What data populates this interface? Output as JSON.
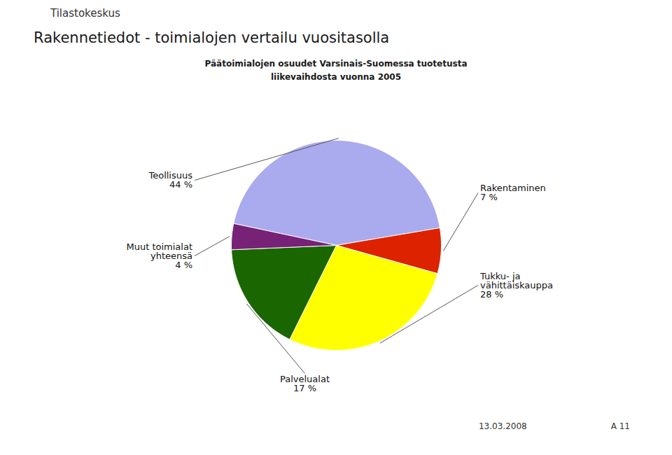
{
  "chart_data": {
    "type": "pie",
    "title": "Rakennetiedot - toimialojen vertailu vuositasolla",
    "subtitle": "Päätoimialojen osuudet Varsinais-Suomessa tuotetusta\nliikevaihdosta vuonna 2005",
    "categories": [
      "Teollisuus",
      "Rakentaminen",
      "Tukku- ja\nvähittäiskauppa",
      "Palvelualat",
      "Muut toimialat\nyhteensä"
    ],
    "values": [
      44,
      7,
      28,
      17,
      4
    ],
    "value_labels": [
      "44 %",
      "7 %",
      "28 %",
      "17 %",
      "4 %"
    ],
    "data_labels": true,
    "colors": [
      "#aaaaee",
      "#dd2200",
      "#ffff00",
      "#1a6600",
      "#772277"
    ],
    "annotations": [
      "Tilastokeskus",
      "13.03.2008",
      "A 11"
    ]
  }
}
